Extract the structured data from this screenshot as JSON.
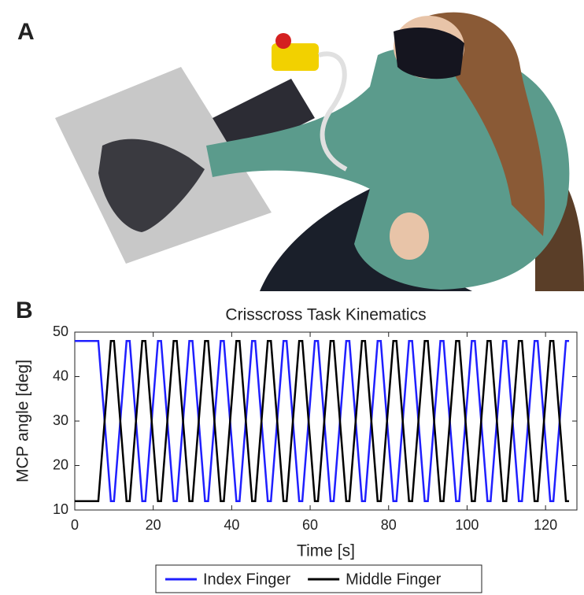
{
  "panel_a": {
    "label": "A"
  },
  "chart_data": {
    "type": "line",
    "panel_label": "B",
    "title": "Crisscross Task Kinematics",
    "x_label": "Time [s]",
    "y_label": "MCP angle [deg]",
    "x": [
      0,
      6,
      9.2,
      10,
      13.2,
      14,
      17.2,
      18,
      21.2,
      22,
      25.2,
      26,
      29.2,
      30,
      33.2,
      34,
      37.2,
      38,
      41.2,
      42,
      45.2,
      46,
      49.2,
      50,
      53.2,
      54,
      57.2,
      58,
      61.2,
      62,
      65.2,
      66,
      69.2,
      70,
      73.2,
      74,
      77.2,
      78,
      81.2,
      82,
      85.2,
      86,
      89.2,
      90,
      93.2,
      94,
      97.2,
      98,
      101.2,
      102,
      105.2,
      106,
      109.2,
      110,
      113.2,
      114,
      117.2,
      118,
      121.2,
      122,
      125.2,
      126
    ],
    "series": [
      {
        "name": "Index Finger",
        "color": "#1f1fff",
        "values": [
          48,
          48,
          12,
          12,
          48,
          48,
          12,
          12,
          48,
          48,
          12,
          12,
          48,
          48,
          12,
          12,
          48,
          48,
          12,
          12,
          48,
          48,
          12,
          12,
          48,
          48,
          12,
          12,
          48,
          48,
          12,
          12,
          48,
          48,
          12,
          12,
          48,
          48,
          12,
          12,
          48,
          48,
          12,
          12,
          48,
          48,
          12,
          12,
          48,
          48,
          12,
          12,
          48,
          48,
          12,
          12,
          48,
          48,
          12,
          12,
          48,
          48
        ]
      },
      {
        "name": "Middle Finger",
        "color": "#000000",
        "values": [
          12,
          12,
          48,
          48,
          12,
          12,
          48,
          48,
          12,
          12,
          48,
          48,
          12,
          12,
          48,
          48,
          12,
          12,
          48,
          48,
          12,
          12,
          48,
          48,
          12,
          12,
          48,
          48,
          12,
          12,
          48,
          48,
          12,
          12,
          48,
          48,
          12,
          12,
          48,
          48,
          12,
          12,
          48,
          48,
          12,
          12,
          48,
          48,
          12,
          12,
          48,
          48,
          12,
          12,
          48,
          48,
          12,
          12,
          48,
          48,
          12,
          12
        ]
      }
    ],
    "xlim": [
      0,
      128
    ],
    "ylim": [
      10,
      50
    ],
    "xticks": [
      0,
      20,
      40,
      60,
      80,
      100,
      120
    ],
    "yticks": [
      10,
      20,
      30,
      40,
      50
    ],
    "legend": "bottom"
  }
}
